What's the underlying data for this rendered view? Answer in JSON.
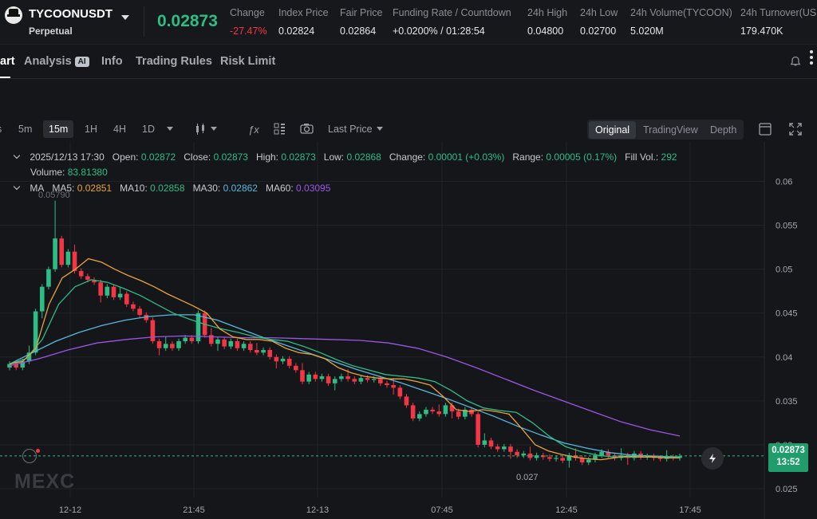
{
  "header": {
    "symbol": "TYCOONUSDT",
    "contract_type": "Perpetual",
    "last_price": "0.02873",
    "stats": [
      {
        "label": "Change",
        "value": "-27.47%",
        "color": "red"
      },
      {
        "label": "Index Price",
        "value": "0.02824"
      },
      {
        "label": "Fair Price",
        "value": "0.02864"
      },
      {
        "label": "Funding Rate / Countdown",
        "value": "+0.0200% / 01:28:54"
      },
      {
        "label": "24h High",
        "value": "0.04800"
      },
      {
        "label": "24h Low",
        "value": "0.02700"
      },
      {
        "label": "24h Volume(TYCOON)",
        "value": "5.020M"
      },
      {
        "label": "24h Turnover(USD",
        "value": "179.470K"
      }
    ]
  },
  "tabs": [
    "art",
    "Analysis",
    "Info",
    "Trading Rules",
    "Risk Limit"
  ],
  "ai_badge": "AI",
  "toolbar": {
    "timeframes": [
      "5m",
      "15m",
      "1H",
      "4H",
      "1D"
    ],
    "selected_timeframe": "15m",
    "price_type": "Last Price",
    "views": [
      "Original",
      "TradingView",
      "Depth"
    ],
    "selected_view": "Original"
  },
  "ohlc": {
    "datetime": "2025/12/13 17:30",
    "open_label": "Open:",
    "open": "0.02872",
    "close_label": "Close:",
    "close": "0.02873",
    "high_label": "High:",
    "high": "0.02873",
    "low_label": "Low:",
    "low": "0.02868",
    "change_label": "Change:",
    "change": "0.00001 (+0.03%)",
    "range_label": "Range:",
    "range": "0.00005 (0.17%)",
    "fillvol_label": "Fill Vol.:",
    "fillvol": "292",
    "volume_label": "Volume:",
    "volume": "83.81380"
  },
  "ma": {
    "title": "MA",
    "ma5_label": "MA5:",
    "ma5": "0.02851",
    "ma10_label": "MA10:",
    "ma10": "0.02858",
    "ma30_label": "MA30:",
    "ma30": "0.02862",
    "ma60_label": "MA60:",
    "ma60": "0.03095"
  },
  "price_tag": {
    "price": "0.02873",
    "countdown": "13:52"
  },
  "min_label": "0.027",
  "max_label": "0.05790",
  "watermark": "MEXC",
  "colors": {
    "up": "#2dbd85",
    "down": "#f23645",
    "ma5": "#e8a33a",
    "ma10": "#2dbd85",
    "ma30": "#57b8e0",
    "ma60": "#9b56e8"
  },
  "chart_data": {
    "type": "candlestick",
    "y_ticks": [
      "0.06",
      "0.055",
      "0.05",
      "0.045",
      "0.04",
      "0.035",
      "0.03",
      "0.025"
    ],
    "ylim": [
      0.024,
      0.0645
    ],
    "x_labels": [
      "12-12",
      "21:45",
      "12-13",
      "07:45",
      "12:45",
      "17:45"
    ],
    "candles_close": [
      0.0392,
      0.0388,
      0.0395,
      0.0405,
      0.0452,
      0.048,
      0.05,
      0.0535,
      0.0505,
      0.052,
      0.0498,
      0.0492,
      0.0488,
      0.0485,
      0.047,
      0.048,
      0.0468,
      0.0472,
      0.046,
      0.0455,
      0.0448,
      0.0442,
      0.0418,
      0.041,
      0.0415,
      0.041,
      0.0418,
      0.0422,
      0.0418,
      0.045,
      0.0425,
      0.0415,
      0.042,
      0.0412,
      0.0418,
      0.041,
      0.0415,
      0.0408,
      0.0405,
      0.0408,
      0.04,
      0.0395,
      0.0398,
      0.039,
      0.0385,
      0.0372,
      0.038,
      0.0375,
      0.0378,
      0.037,
      0.0375,
      0.0378,
      0.0375,
      0.0372,
      0.0376,
      0.0374,
      0.0375,
      0.037,
      0.0368,
      0.0365,
      0.0355,
      0.0345,
      0.033,
      0.0335,
      0.034,
      0.0338,
      0.0335,
      0.0345,
      0.0338,
      0.0332,
      0.034,
      0.0335,
      0.03,
      0.0305,
      0.0298,
      0.0295,
      0.0298,
      0.0292,
      0.0288,
      0.029,
      0.0285,
      0.0288,
      0.0286,
      0.0284,
      0.0285,
      0.0282,
      0.0288,
      0.0285,
      0.028,
      0.0283,
      0.0288,
      0.0292,
      0.0288,
      0.0285,
      0.0288,
      0.0285,
      0.029,
      0.0286,
      0.0287,
      0.0285,
      0.0284,
      0.0286,
      0.0285,
      0.0287
    ],
    "ma5": [
      0.0392,
      0.0395,
      0.041,
      0.046,
      0.049,
      0.05,
      0.0512,
      0.0508,
      0.05,
      0.0493,
      0.0487,
      0.048,
      0.0472,
      0.0465,
      0.0458,
      0.045,
      0.0432,
      0.0423,
      0.042,
      0.042,
      0.0418,
      0.041,
      0.0405,
      0.0403,
      0.0398,
      0.0388,
      0.0382,
      0.0378,
      0.0376,
      0.0375,
      0.0375,
      0.0372,
      0.0368,
      0.0355,
      0.034,
      0.0338,
      0.034,
      0.0338,
      0.0335,
      0.0318,
      0.03,
      0.0293,
      0.0289,
      0.0286,
      0.0284,
      0.0283,
      0.0285,
      0.0287,
      0.0286,
      0.0286,
      0.0285,
      0.0285
    ],
    "ma10": [
      0.0392,
      0.0398,
      0.042,
      0.046,
      0.048,
      0.0488,
      0.0485,
      0.0478,
      0.047,
      0.046,
      0.045,
      0.0443,
      0.0437,
      0.0432,
      0.0428,
      0.0423,
      0.042,
      0.0418,
      0.0412,
      0.0405,
      0.0397,
      0.039,
      0.0385,
      0.038,
      0.0378,
      0.0376,
      0.0372,
      0.0362,
      0.035,
      0.0342,
      0.0339,
      0.0337,
      0.0325,
      0.031,
      0.0298,
      0.0292,
      0.0288,
      0.0286,
      0.0286,
      0.0286,
      0.0286,
      0.0286
    ],
    "ma30": [
      0.0392,
      0.0405,
      0.0418,
      0.0428,
      0.0436,
      0.0442,
      0.0446,
      0.0448,
      0.0448,
      0.0442,
      0.0432,
      0.0422,
      0.0413,
      0.0404,
      0.0395,
      0.0386,
      0.0378,
      0.037,
      0.0361,
      0.0352,
      0.0342,
      0.0332,
      0.0321,
      0.0311,
      0.0302,
      0.0296,
      0.0291,
      0.0288,
      0.0287,
      0.0286
    ],
    "ma60": [
      0.039,
      0.0398,
      0.0408,
      0.0416,
      0.042,
      0.0423,
      0.0424,
      0.0423,
      0.0422,
      0.0422,
      0.0421,
      0.042,
      0.0419,
      0.0416,
      0.041,
      0.04,
      0.0388,
      0.0375,
      0.0362,
      0.035,
      0.0338,
      0.0326,
      0.0317,
      0.031
    ]
  }
}
